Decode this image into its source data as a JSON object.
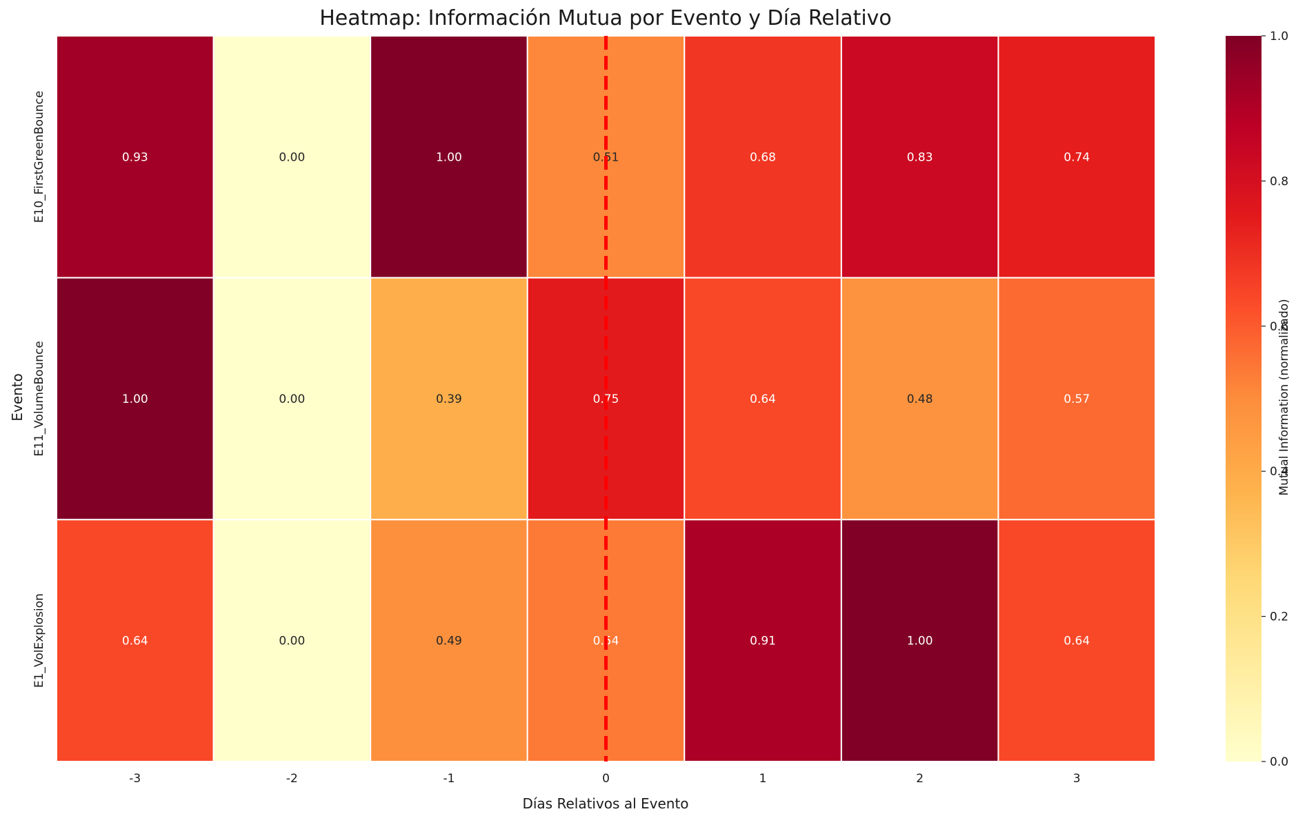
{
  "chart_data": {
    "type": "heatmap",
    "title": "Heatmap: Información Mutua por Evento y Día Relativo",
    "xlabel": "Días Relativos al Evento",
    "ylabel": "Evento",
    "x_categories": [
      "-3",
      "-2",
      "-1",
      "0",
      "1",
      "2",
      "3"
    ],
    "y_categories": [
      "E10_FirstGreenBounce",
      "E11_VolumeBounce",
      "E1_VolExplosion"
    ],
    "values": [
      [
        0.93,
        0.0,
        1.0,
        0.51,
        0.68,
        0.83,
        0.74
      ],
      [
        1.0,
        0.0,
        0.39,
        0.75,
        0.64,
        0.48,
        0.57
      ],
      [
        0.64,
        0.0,
        0.49,
        0.54,
        0.91,
        1.0,
        0.64
      ]
    ],
    "value_format": "0.00",
    "vmin": 0.0,
    "vmax": 1.0,
    "colormap": "YlOrRd",
    "colormap_stops": [
      "#ffffcc",
      "#ffeda0",
      "#fed976",
      "#feb24c",
      "#fd8d3c",
      "#fc4e2a",
      "#e31a1c",
      "#bd0026",
      "#800026"
    ],
    "colorbar": {
      "label": "Mutual Information (normalizado)",
      "ticks": [
        "0.0",
        "0.2",
        "0.4",
        "0.6",
        "0.8",
        "1.0"
      ],
      "tick_values": [
        0.0,
        0.2,
        0.4,
        0.6,
        0.8,
        1.0
      ]
    },
    "reference_line": {
      "x_category": "0",
      "style": "dashed",
      "color": "#ff0000"
    },
    "grid": false
  }
}
